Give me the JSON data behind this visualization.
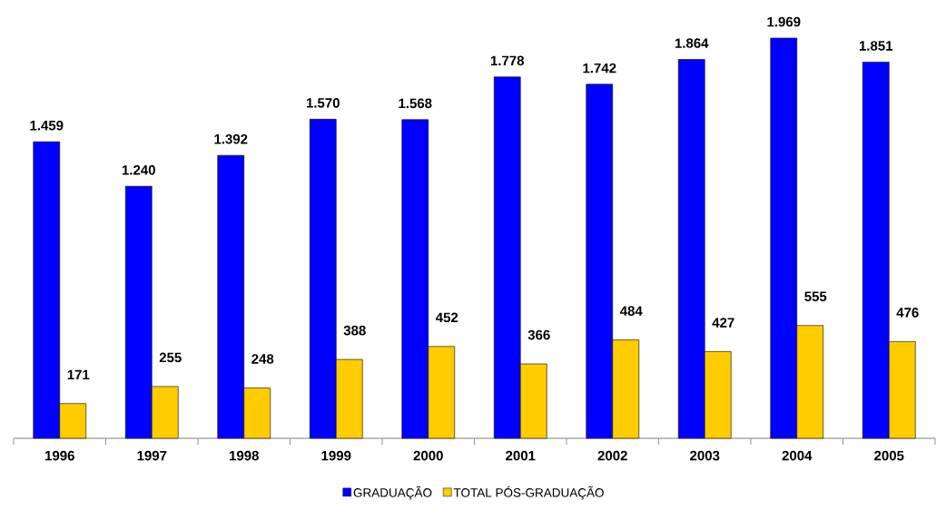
{
  "chart_data": {
    "type": "bar",
    "categories": [
      "1996",
      "1997",
      "1998",
      "1999",
      "2000",
      "2001",
      "2002",
      "2003",
      "2004",
      "2005"
    ],
    "series": [
      {
        "name": "GRADUAÇÃO",
        "color": "#0000ff",
        "values": [
          1459,
          1240,
          1392,
          1570,
          1568,
          1778,
          1742,
          1864,
          1969,
          1851
        ],
        "value_labels": [
          "1.459",
          "1.240",
          "1.392",
          "1.570",
          "1.568",
          "1.778",
          "1.742",
          "1.864",
          "1.969",
          "1.851"
        ]
      },
      {
        "name": "TOTAL PÓS-GRADUAÇÃO",
        "color": "#ffcc00",
        "values": [
          171,
          255,
          248,
          388,
          452,
          366,
          484,
          427,
          555,
          476
        ],
        "value_labels": [
          "171",
          "255",
          "248",
          "388",
          "452",
          "366",
          "484",
          "427",
          "555",
          "476"
        ]
      }
    ],
    "tick_labels": "x",
    "legend": "bottom"
  }
}
